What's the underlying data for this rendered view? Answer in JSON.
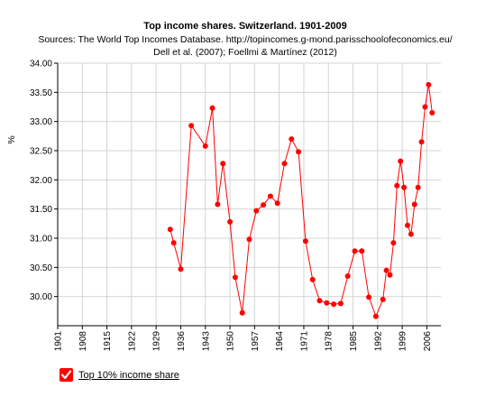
{
  "chart_data": {
    "type": "line",
    "title": "Top income shares. Switzerland. 1901-2009",
    "subtitle_lines": [
      "Sources: The World Top Incomes Database. http://topincomes.g-mond.parisschoolofeconomics.eu/",
      "Dell et al. (2007); Foellmi & Martínez (2012)"
    ],
    "ylabel": "%",
    "xlabel": "",
    "xlim": [
      1901,
      2010
    ],
    "ylim": [
      29.5,
      34.0
    ],
    "x_ticks": [
      1901,
      1908,
      1915,
      1922,
      1929,
      1936,
      1943,
      1950,
      1957,
      1964,
      1971,
      1978,
      1985,
      1992,
      1999,
      2006
    ],
    "y_ticks": [
      30.0,
      30.5,
      31.0,
      31.5,
      32.0,
      32.5,
      33.0,
      33.5,
      34.0
    ],
    "y_tick_labels": [
      "30.00",
      "30.50",
      "31.00",
      "31.50",
      "32.00",
      "32.50",
      "33.00",
      "33.50",
      "34.00"
    ],
    "grid": true,
    "color": "#ff0000",
    "series": [
      {
        "name": "Top 10% income share",
        "points": [
          [
            1933,
            31.15
          ],
          [
            1934,
            30.92
          ],
          [
            1936,
            30.47
          ],
          [
            1939,
            32.93
          ],
          [
            1943,
            32.58
          ],
          [
            1945,
            33.23
          ],
          [
            1946.5,
            31.58
          ],
          [
            1948,
            32.28
          ],
          [
            1950,
            31.28
          ],
          [
            1951.5,
            30.33
          ],
          [
            1953.5,
            29.72
          ],
          [
            1955.5,
            30.98
          ],
          [
            1957.5,
            31.47
          ],
          [
            1959.5,
            31.57
          ],
          [
            1961.5,
            31.72
          ],
          [
            1963.5,
            31.6
          ],
          [
            1965.5,
            32.28
          ],
          [
            1967.5,
            32.7
          ],
          [
            1969.5,
            32.48
          ],
          [
            1971.5,
            30.95
          ],
          [
            1973.5,
            30.29
          ],
          [
            1975.5,
            29.93
          ],
          [
            1977.5,
            29.89
          ],
          [
            1979.5,
            29.87
          ],
          [
            1981.5,
            29.88
          ],
          [
            1983.5,
            30.35
          ],
          [
            1985.5,
            30.78
          ],
          [
            1987.5,
            30.78
          ],
          [
            1989.5,
            29.99
          ],
          [
            1991.5,
            29.66
          ],
          [
            1993.5,
            29.95
          ],
          [
            1994.5,
            30.45
          ],
          [
            1995.5,
            30.37
          ],
          [
            1996.5,
            30.92
          ],
          [
            1997.5,
            31.9
          ],
          [
            1998.5,
            32.32
          ],
          [
            1999.5,
            31.87
          ],
          [
            2000.5,
            31.22
          ],
          [
            2001.5,
            31.07
          ],
          [
            2002.5,
            31.58
          ],
          [
            2003.5,
            31.87
          ],
          [
            2004.5,
            32.65
          ],
          [
            2005.5,
            33.25
          ],
          [
            2006.5,
            33.63
          ],
          [
            2007.5,
            33.15
          ]
        ]
      }
    ]
  },
  "legend": {
    "label": "Top 10% income share",
    "checked_icon": "checkmark-icon"
  }
}
